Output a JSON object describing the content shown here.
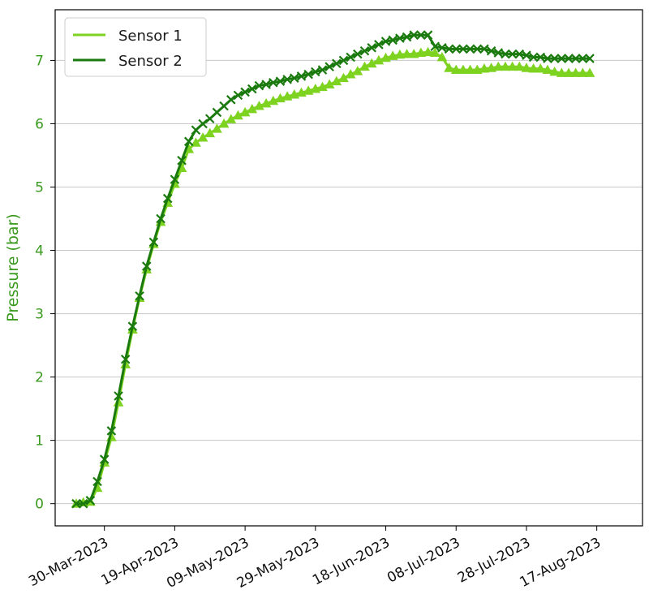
{
  "chart_data": {
    "type": "line",
    "title": "",
    "xlabel": "",
    "ylabel": "Pressure (bar)",
    "xlim": [
      "2023-03-16",
      "2023-08-30"
    ],
    "ylim": [
      -0.35,
      7.8
    ],
    "grid": "horizontal",
    "legend_position": "top-left",
    "x_tick_labels": [
      "30-Mar-2023",
      "19-Apr-2023",
      "09-May-2023",
      "29-May-2023",
      "18-Jun-2023",
      "08-Jul-2023",
      "28-Jul-2023",
      "17-Aug-2023"
    ],
    "x_ticks": [
      "2023-03-30",
      "2023-04-19",
      "2023-05-09",
      "2023-05-29",
      "2023-06-18",
      "2023-07-08",
      "2023-07-28",
      "2023-08-17"
    ],
    "y_ticks": [
      0,
      1,
      2,
      3,
      4,
      5,
      6,
      7
    ],
    "x": [
      "2023-03-22",
      "2023-03-24",
      "2023-03-26",
      "2023-03-28",
      "2023-03-30",
      "2023-04-01",
      "2023-04-03",
      "2023-04-05",
      "2023-04-07",
      "2023-04-09",
      "2023-04-11",
      "2023-04-13",
      "2023-04-15",
      "2023-04-17",
      "2023-04-19",
      "2023-04-21",
      "2023-04-23",
      "2023-04-25",
      "2023-04-27",
      "2023-04-29",
      "2023-05-01",
      "2023-05-03",
      "2023-05-05",
      "2023-05-07",
      "2023-05-09",
      "2023-05-11",
      "2023-05-13",
      "2023-05-15",
      "2023-05-17",
      "2023-05-19",
      "2023-05-21",
      "2023-05-23",
      "2023-05-25",
      "2023-05-27",
      "2023-05-29",
      "2023-05-31",
      "2023-06-02",
      "2023-06-04",
      "2023-06-06",
      "2023-06-08",
      "2023-06-10",
      "2023-06-12",
      "2023-06-14",
      "2023-06-16",
      "2023-06-18",
      "2023-06-20",
      "2023-06-22",
      "2023-06-24",
      "2023-06-26",
      "2023-06-28",
      "2023-06-30",
      "2023-07-02",
      "2023-07-04",
      "2023-07-06",
      "2023-07-08",
      "2023-07-10",
      "2023-07-12",
      "2023-07-14",
      "2023-07-16",
      "2023-07-18",
      "2023-07-20",
      "2023-07-22",
      "2023-07-24",
      "2023-07-26",
      "2023-07-28",
      "2023-07-30",
      "2023-08-01",
      "2023-08-03",
      "2023-08-05",
      "2023-08-07",
      "2023-08-09",
      "2023-08-11",
      "2023-08-13",
      "2023-08-15"
    ],
    "series": [
      {
        "name": "Sensor 1",
        "color": "#7ed321",
        "marker": "triangle",
        "values": [
          0.0,
          0.02,
          0.03,
          0.25,
          0.65,
          1.05,
          1.6,
          2.2,
          2.75,
          3.25,
          3.7,
          4.1,
          4.45,
          4.75,
          5.05,
          5.3,
          5.6,
          5.7,
          5.78,
          5.85,
          5.92,
          6.0,
          6.07,
          6.13,
          6.18,
          6.23,
          6.28,
          6.32,
          6.36,
          6.4,
          6.43,
          6.46,
          6.49,
          6.52,
          6.55,
          6.58,
          6.62,
          6.67,
          6.72,
          6.78,
          6.83,
          6.9,
          6.95,
          7.0,
          7.04,
          7.07,
          7.09,
          7.1,
          7.1,
          7.12,
          7.13,
          7.12,
          7.05,
          6.88,
          6.85,
          6.85,
          6.85,
          6.85,
          6.87,
          6.88,
          6.9,
          6.9,
          6.9,
          6.9,
          6.88,
          6.87,
          6.87,
          6.85,
          6.82,
          6.8,
          6.8,
          6.8,
          6.8,
          6.8
        ]
      },
      {
        "name": "Sensor 2",
        "color": "#1a7a0e",
        "marker": "x",
        "values": [
          0.0,
          0.0,
          0.05,
          0.35,
          0.7,
          1.15,
          1.7,
          2.28,
          2.8,
          3.28,
          3.75,
          4.13,
          4.5,
          4.82,
          5.12,
          5.42,
          5.72,
          5.9,
          6.0,
          6.08,
          6.18,
          6.28,
          6.38,
          6.45,
          6.5,
          6.55,
          6.6,
          6.62,
          6.65,
          6.67,
          6.7,
          6.72,
          6.75,
          6.78,
          6.82,
          6.85,
          6.9,
          6.95,
          7.0,
          7.05,
          7.1,
          7.15,
          7.2,
          7.25,
          7.3,
          7.32,
          7.35,
          7.37,
          7.4,
          7.4,
          7.4,
          7.22,
          7.2,
          7.18,
          7.18,
          7.18,
          7.18,
          7.18,
          7.18,
          7.15,
          7.12,
          7.1,
          7.1,
          7.1,
          7.08,
          7.05,
          7.05,
          7.03,
          7.03,
          7.03,
          7.03,
          7.03,
          7.03,
          7.03
        ]
      }
    ]
  }
}
